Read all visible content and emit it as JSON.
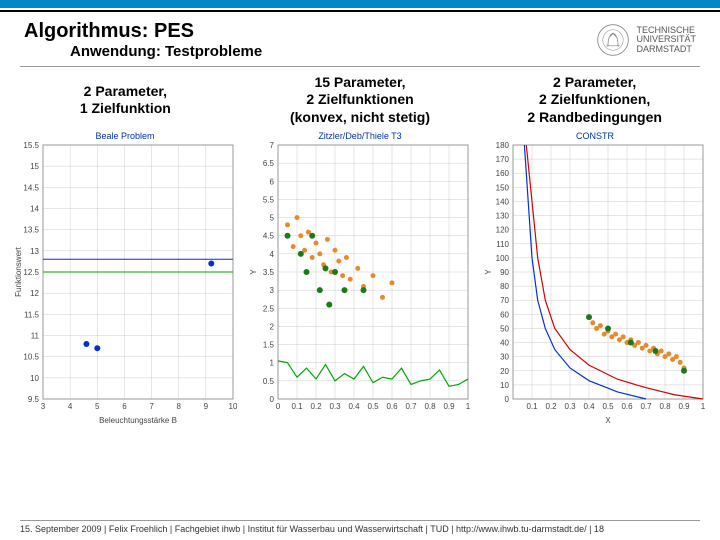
{
  "accent_color": "#0088c2",
  "header": {
    "title": "Algorithmus: PES",
    "subtitle": "Anwendung: Testprobleme",
    "university_lines": [
      "TECHNISCHE",
      "UNIVERSITÄT",
      "DARMSTADT"
    ]
  },
  "footer": {
    "text": "15. September 2009 | Felix Froehlich | Fachgebiet ihwb | Institut für Wasserbau und Wasserwirtschaft | TUD | http://www.ihwb.tu-darmstadt.de/ | 18"
  },
  "charts": [
    {
      "title_lines": [
        "2 Parameter,",
        "1 Zielfunktion"
      ],
      "plot_title": "Beale Problem",
      "type": "line+scatter",
      "xlabel": "Beleuchtungsstärke B",
      "ylabel": "Funktionswert",
      "xlim": [
        3,
        10
      ],
      "ylim": [
        9.5,
        15.5
      ],
      "xtick_step": 1,
      "ytick_step": 0.5,
      "background_color": "#ffffff",
      "border_color": "#999999",
      "grid_color": "#cccccc",
      "title_color": "#0033aa",
      "label_fontsize": 8,
      "lines": [
        {
          "y": 12.5,
          "color": "#00aa00",
          "width": 1
        },
        {
          "y": 12.8,
          "color": "#0033cc",
          "width": 1
        }
      ],
      "scatter": [
        {
          "x": 4.6,
          "y": 10.8,
          "color": "#0033cc",
          "size": 3
        },
        {
          "x": 5.0,
          "y": 10.7,
          "color": "#0033cc",
          "size": 3
        },
        {
          "x": 9.2,
          "y": 12.7,
          "color": "#0033cc",
          "size": 3
        }
      ]
    },
    {
      "title_lines": [
        "15 Parameter,",
        "2 Zielfunktionen",
        "(konvex, nicht stetig)"
      ],
      "plot_title": "Zitzler/Deb/Thiele T3",
      "type": "curve+scatter",
      "xlabel": "",
      "ylabel": "Y",
      "xlim": [
        0,
        1
      ],
      "ylim": [
        0,
        7
      ],
      "xtick_step": 0.1,
      "ytick_step": 0.5,
      "background_color": "#ffffff",
      "border_color": "#999999",
      "grid_color": "#cccccc",
      "title_color": "#0033aa",
      "label_fontsize": 8,
      "curve": {
        "color": "#00aa00",
        "width": 1.2,
        "type": "wave",
        "points": [
          [
            0.0,
            1.05
          ],
          [
            0.05,
            1.0
          ],
          [
            0.1,
            0.6
          ],
          [
            0.15,
            0.85
          ],
          [
            0.2,
            0.55
          ],
          [
            0.25,
            0.95
          ],
          [
            0.3,
            0.5
          ],
          [
            0.35,
            0.7
          ],
          [
            0.4,
            0.55
          ],
          [
            0.45,
            0.9
          ],
          [
            0.5,
            0.45
          ],
          [
            0.55,
            0.6
          ],
          [
            0.6,
            0.55
          ],
          [
            0.65,
            0.85
          ],
          [
            0.7,
            0.4
          ],
          [
            0.75,
            0.5
          ],
          [
            0.8,
            0.55
          ],
          [
            0.85,
            0.8
          ],
          [
            0.9,
            0.35
          ],
          [
            0.95,
            0.4
          ],
          [
            1.0,
            0.55
          ]
        ]
      },
      "scatter_orange": {
        "color": "#e58a2e",
        "size": 2.5,
        "points": [
          [
            0.05,
            4.8
          ],
          [
            0.08,
            4.2
          ],
          [
            0.1,
            5.0
          ],
          [
            0.12,
            4.5
          ],
          [
            0.14,
            4.1
          ],
          [
            0.16,
            4.6
          ],
          [
            0.18,
            3.9
          ],
          [
            0.2,
            4.3
          ],
          [
            0.22,
            4.0
          ],
          [
            0.24,
            3.7
          ],
          [
            0.26,
            4.4
          ],
          [
            0.28,
            3.5
          ],
          [
            0.3,
            4.1
          ],
          [
            0.32,
            3.8
          ],
          [
            0.34,
            3.4
          ],
          [
            0.36,
            3.9
          ],
          [
            0.38,
            3.3
          ],
          [
            0.42,
            3.6
          ],
          [
            0.45,
            3.1
          ],
          [
            0.5,
            3.4
          ],
          [
            0.55,
            2.8
          ],
          [
            0.6,
            3.2
          ]
        ]
      },
      "scatter_green": {
        "color": "#1a7a1a",
        "size": 3,
        "points": [
          [
            0.05,
            4.5
          ],
          [
            0.12,
            4.0
          ],
          [
            0.18,
            4.5
          ],
          [
            0.15,
            3.5
          ],
          [
            0.25,
            3.6
          ],
          [
            0.22,
            3.0
          ],
          [
            0.3,
            3.5
          ],
          [
            0.35,
            3.0
          ],
          [
            0.27,
            2.6
          ],
          [
            0.45,
            3.0
          ]
        ]
      }
    },
    {
      "title_lines": [
        "2 Parameter,",
        "2 Zielfunktionen,",
        "2 Randbedingungen"
      ],
      "plot_title": "CONSTR",
      "type": "curves+scatter",
      "xlabel": "X",
      "ylabel": "Y",
      "xlim": [
        0,
        1
      ],
      "ylim": [
        0,
        180
      ],
      "xticks": [
        0.1,
        0.2,
        0.3,
        0.4,
        0.5,
        0.6,
        0.7,
        0.8,
        0.9,
        1.0
      ],
      "ytick_step": 10,
      "background_color": "#ffffff",
      "border_color": "#999999",
      "grid_color": "#cccccc",
      "title_color": "#0033aa",
      "label_fontsize": 8,
      "curves": [
        {
          "color": "#0033cc",
          "width": 1.2,
          "points": [
            [
              0.06,
              180
            ],
            [
              0.08,
              140
            ],
            [
              0.1,
              100
            ],
            [
              0.13,
              70
            ],
            [
              0.17,
              50
            ],
            [
              0.22,
              35
            ],
            [
              0.3,
              22
            ],
            [
              0.4,
              13
            ],
            [
              0.55,
              5
            ],
            [
              0.7,
              0
            ]
          ]
        },
        {
          "color": "#d40000",
          "width": 1.2,
          "points": [
            [
              0.07,
              180
            ],
            [
              0.1,
              140
            ],
            [
              0.13,
              100
            ],
            [
              0.17,
              70
            ],
            [
              0.22,
              50
            ],
            [
              0.3,
              35
            ],
            [
              0.4,
              24
            ],
            [
              0.55,
              14
            ],
            [
              0.7,
              8
            ],
            [
              0.85,
              3
            ],
            [
              1.0,
              0
            ]
          ]
        }
      ],
      "scatter_orange": {
        "color": "#e58a2e",
        "size": 2.5,
        "points": [
          [
            0.42,
            54
          ],
          [
            0.44,
            50
          ],
          [
            0.46,
            52
          ],
          [
            0.48,
            46
          ],
          [
            0.5,
            48
          ],
          [
            0.52,
            44
          ],
          [
            0.54,
            46
          ],
          [
            0.56,
            42
          ],
          [
            0.58,
            44
          ],
          [
            0.6,
            40
          ],
          [
            0.62,
            42
          ],
          [
            0.64,
            38
          ],
          [
            0.66,
            40
          ],
          [
            0.68,
            36
          ],
          [
            0.7,
            38
          ],
          [
            0.72,
            34
          ],
          [
            0.74,
            36
          ],
          [
            0.76,
            32
          ],
          [
            0.78,
            34
          ],
          [
            0.8,
            30
          ],
          [
            0.82,
            32
          ],
          [
            0.84,
            28
          ],
          [
            0.86,
            30
          ],
          [
            0.88,
            26
          ],
          [
            0.9,
            22
          ]
        ]
      },
      "scatter_green": {
        "color": "#1a7a1a",
        "size": 3,
        "points": [
          [
            0.4,
            58
          ],
          [
            0.5,
            50
          ],
          [
            0.62,
            40
          ],
          [
            0.75,
            34
          ],
          [
            0.9,
            20
          ]
        ]
      }
    }
  ]
}
